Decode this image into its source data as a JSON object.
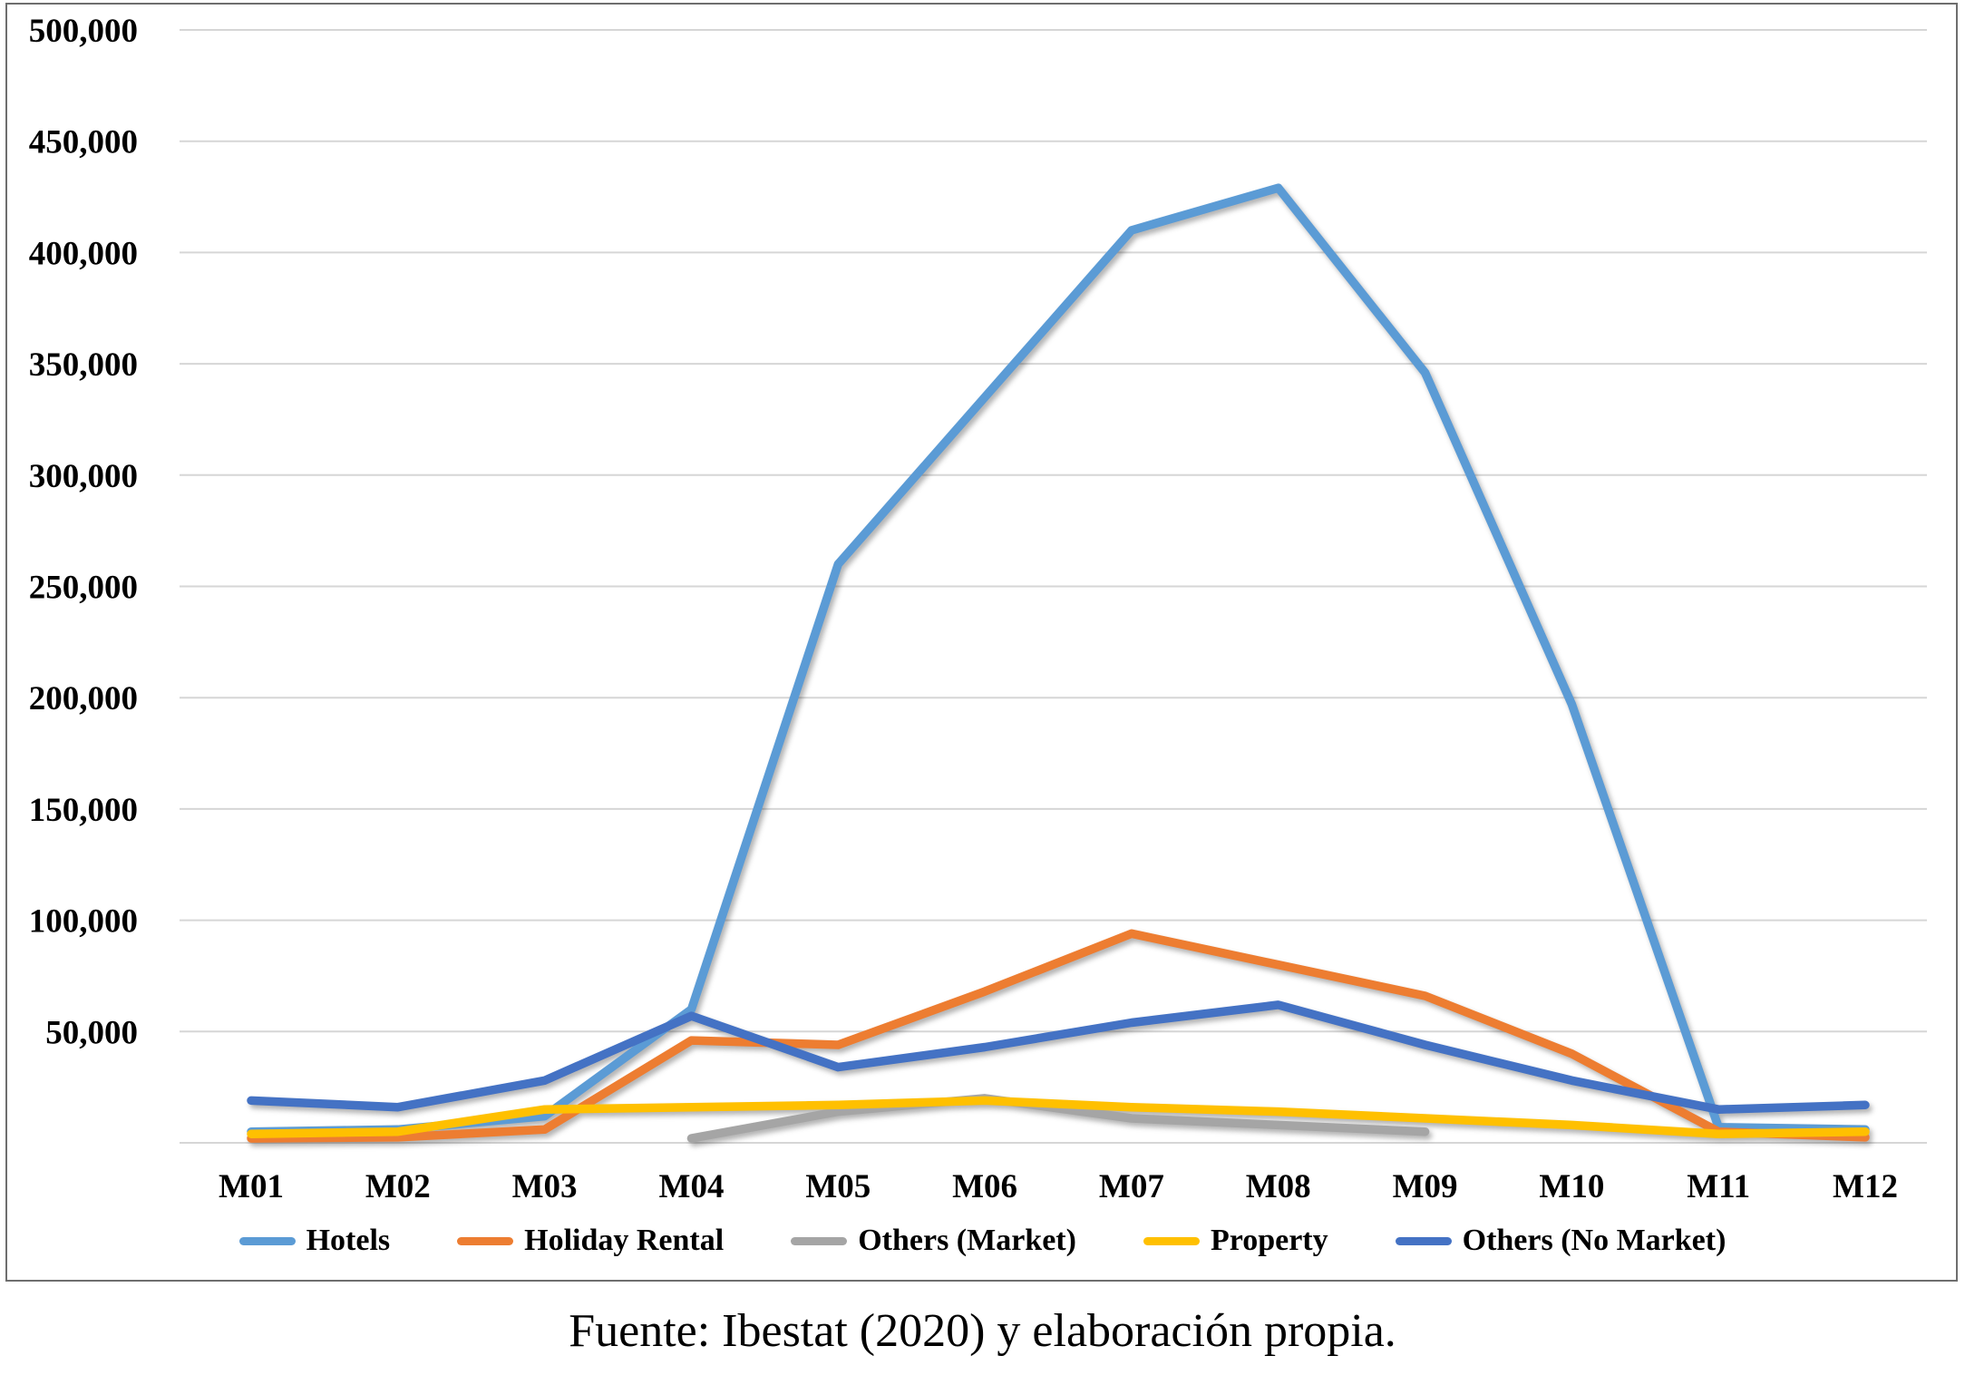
{
  "caption": "Fuente: Ibestat (2020) y elaboración propia.",
  "chart_data": {
    "type": "line",
    "title": "",
    "xlabel": "",
    "ylabel": "",
    "categories": [
      "M01",
      "M02",
      "M03",
      "M04",
      "M05",
      "M06",
      "M07",
      "M08",
      "M09",
      "M10",
      "M11",
      "M12"
    ],
    "ylim": [
      0,
      500000
    ],
    "y_step": 50000,
    "y_tick_labels": [
      "50,000",
      "100,000",
      "150,000",
      "200,000",
      "250,000",
      "300,000",
      "350,000",
      "400,000",
      "450,000",
      "500,000"
    ],
    "grid": true,
    "legend_position": "bottom",
    "series": [
      {
        "name": "Hotels",
        "color": "#5B9BD5",
        "values": [
          5000,
          6000,
          12000,
          60000,
          260000,
          335000,
          410000,
          429000,
          346000,
          197000,
          7000,
          6000
        ]
      },
      {
        "name": "Holiday Rental",
        "color": "#ED7D31",
        "values": [
          2000,
          2500,
          6000,
          46000,
          44000,
          68000,
          94000,
          80000,
          66000,
          40000,
          5000,
          2500
        ]
      },
      {
        "name": "Others (Market)",
        "color": "#A5A5A5",
        "values": [
          null,
          null,
          null,
          2000,
          14000,
          20000,
          11000,
          8000,
          5000,
          null,
          null,
          null
        ]
      },
      {
        "name": "Property",
        "color": "#FFC000",
        "values": [
          4000,
          5000,
          15000,
          16000,
          17000,
          19000,
          16000,
          14000,
          11000,
          8000,
          4000,
          5000
        ]
      },
      {
        "name": "Others (No Market)",
        "color": "#4472C4",
        "values": [
          19000,
          16000,
          28000,
          57000,
          34000,
          43000,
          54000,
          62000,
          44000,
          28000,
          15000,
          17000
        ]
      }
    ]
  }
}
